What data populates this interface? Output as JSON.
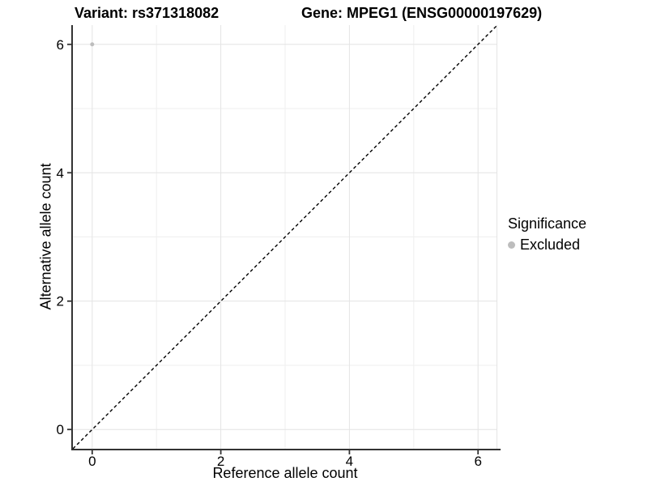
{
  "chart_data": {
    "type": "scatter",
    "titles": {
      "left": "Variant: rs371318082",
      "right": "Gene: MPEG1 (ENSG00000197629)"
    },
    "xlabel": "Reference allele count",
    "ylabel": "Alternative allele count",
    "xlim": [
      -0.3,
      6.3
    ],
    "ylim": [
      -0.3,
      6.3
    ],
    "xticks": [
      0,
      2,
      4,
      6
    ],
    "yticks": [
      0,
      2,
      4,
      6
    ],
    "minor_xticks": [
      1,
      3,
      5
    ],
    "minor_yticks": [
      1,
      3,
      5
    ],
    "grid": true,
    "points": [
      {
        "x": 0,
        "y": 6,
        "series": "Excluded"
      }
    ],
    "identity_line": {
      "slope": 1,
      "intercept": 0,
      "style": "dashed",
      "color": "#000000"
    },
    "legend": {
      "title": "Significance",
      "position": "right",
      "items": [
        {
          "label": "Excluded",
          "color": "#bdbdbd"
        }
      ]
    },
    "colors": {
      "point": "#bdbdbd",
      "major_grid": "#e4e4e4",
      "minor_grid": "#efefef",
      "panel_edge": "#e4e4e4",
      "axis_line": "#333333",
      "tick_mark": "#333333"
    }
  }
}
